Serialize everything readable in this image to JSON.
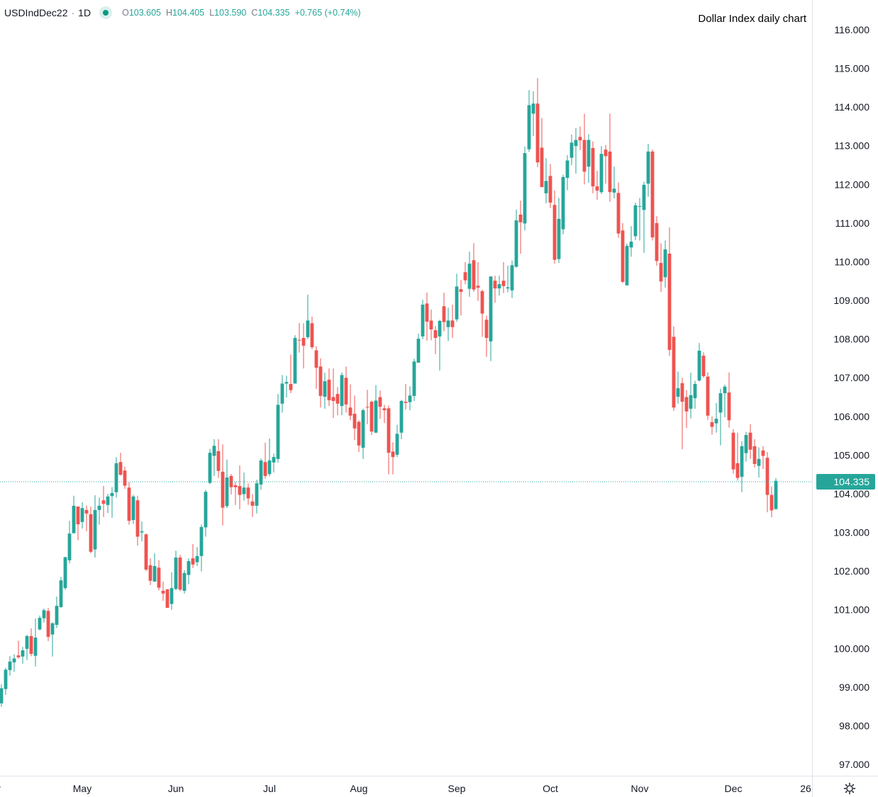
{
  "header": {
    "symbol": "USDIndDec22",
    "separator": "·",
    "interval": "1D",
    "open_label": "O",
    "open": "103.605",
    "high_label": "H",
    "high": "104.405",
    "low_label": "L",
    "low": "103.590",
    "close_label": "C",
    "close": "104.335",
    "change": "+0.765 (+0.74%)",
    "status_icon": "market-open-dot-icon"
  },
  "title": "Dollar Index daily chart",
  "settings_icon": "gear-icon",
  "colors": {
    "up": "#26a69a",
    "down": "#ef5350",
    "last_price": "#26a69a",
    "grid_border": "#e0e3eb"
  },
  "chart_data": {
    "type": "candlestick",
    "title": "Dollar Index daily chart",
    "grid": false,
    "ylim": [
      96.6,
      116.7
    ],
    "y_ticks": [
      "97.000",
      "98.000",
      "99.000",
      "100.000",
      "101.000",
      "102.000",
      "103.000",
      "104.000",
      "105.000",
      "106.000",
      "107.000",
      "108.000",
      "109.000",
      "110.000",
      "111.000",
      "112.000",
      "113.000",
      "114.000",
      "115.000",
      "116.000"
    ],
    "x_ticks": [
      {
        "date": "04-01",
        "label": "Apr"
      },
      {
        "date": "05-02",
        "label": "May"
      },
      {
        "date": "06-01",
        "label": "Jun"
      },
      {
        "date": "07-01",
        "label": "Jul"
      },
      {
        "date": "08-01",
        "label": "Aug"
      },
      {
        "date": "09-01",
        "label": "Sep"
      },
      {
        "date": "10-03",
        "label": "Oct"
      },
      {
        "date": "11-01",
        "label": "Nov"
      },
      {
        "date": "12-01",
        "label": "Dec"
      },
      {
        "date": "12-26",
        "label": "26"
      }
    ],
    "last_price": "104.335",
    "columns": [
      "date",
      "open",
      "high",
      "low",
      "close"
    ],
    "rows": [
      [
        "04-05",
        98.58,
        99.07,
        98.49,
        98.97
      ],
      [
        "04-06",
        98.95,
        99.5,
        98.8,
        99.45
      ],
      [
        "04-07",
        99.44,
        99.8,
        99.3,
        99.66
      ],
      [
        "04-08",
        99.64,
        99.85,
        99.4,
        99.74
      ],
      [
        "04-11",
        99.82,
        100.2,
        99.73,
        99.77
      ],
      [
        "04-12",
        99.79,
        100.04,
        99.6,
        99.95
      ],
      [
        "04-13",
        99.99,
        100.35,
        99.7,
        100.32
      ],
      [
        "04-14",
        100.32,
        100.52,
        99.8,
        99.86
      ],
      [
        "04-15",
        99.81,
        100.77,
        99.53,
        100.28
      ],
      [
        "04-18",
        100.49,
        100.85,
        100.47,
        100.79
      ],
      [
        "04-19",
        100.78,
        101.03,
        100.67,
        100.99
      ],
      [
        "04-20",
        100.97,
        101.05,
        100.19,
        100.3
      ],
      [
        "04-21",
        100.36,
        100.68,
        99.79,
        100.65
      ],
      [
        "04-22",
        100.61,
        101.34,
        100.53,
        101.1
      ],
      [
        "04-25",
        101.07,
        101.85,
        101.05,
        101.76
      ],
      [
        "04-26",
        101.56,
        102.37,
        101.52,
        102.36
      ],
      [
        "04-27",
        102.28,
        103.3,
        102.2,
        102.97
      ],
      [
        "04-28",
        102.98,
        103.95,
        102.98,
        103.69
      ],
      [
        "04-29",
        103.67,
        103.67,
        102.8,
        103.21
      ],
      [
        "05-02",
        103.27,
        103.78,
        103.1,
        103.63
      ],
      [
        "05-03",
        103.58,
        103.7,
        103.03,
        103.49
      ],
      [
        "05-04",
        103.47,
        103.67,
        102.46,
        102.5
      ],
      [
        "05-05",
        102.56,
        103.96,
        102.35,
        103.58
      ],
      [
        "05-06",
        103.58,
        103.9,
        103.2,
        103.69
      ],
      [
        "05-09",
        103.83,
        104.2,
        103.4,
        103.74
      ],
      [
        "05-10",
        103.71,
        104.0,
        103.5,
        103.93
      ],
      [
        "05-11",
        103.94,
        104.17,
        103.38,
        104.02
      ],
      [
        "05-12",
        104.04,
        104.95,
        103.9,
        104.79
      ],
      [
        "05-13",
        104.82,
        105.06,
        104.47,
        104.49
      ],
      [
        "05-16",
        104.6,
        104.7,
        104.13,
        104.21
      ],
      [
        "05-17",
        104.16,
        104.3,
        103.2,
        103.3
      ],
      [
        "05-18",
        103.32,
        103.97,
        103.22,
        103.93
      ],
      [
        "05-19",
        103.83,
        103.95,
        102.66,
        102.89
      ],
      [
        "05-20",
        103.0,
        103.28,
        102.77,
        103.03
      ],
      [
        "05-23",
        102.95,
        102.97,
        102.0,
        102.04
      ],
      [
        "05-24",
        102.15,
        102.33,
        101.64,
        101.75
      ],
      [
        "05-25",
        101.73,
        102.46,
        101.72,
        102.13
      ],
      [
        "05-26",
        102.09,
        102.28,
        101.5,
        101.57
      ],
      [
        "05-27",
        101.49,
        101.73,
        101.23,
        101.42
      ],
      [
        "05-30",
        101.53,
        101.53,
        101.05,
        101.05
      ],
      [
        "05-31",
        101.15,
        101.97,
        101.0,
        101.56
      ],
      [
        "06-01",
        101.54,
        102.53,
        101.5,
        102.35
      ],
      [
        "06-02",
        102.35,
        102.42,
        101.48,
        101.52
      ],
      [
        "06-03",
        101.49,
        102.02,
        101.42,
        101.95
      ],
      [
        "06-06",
        101.9,
        102.33,
        101.66,
        102.26
      ],
      [
        "06-07",
        102.33,
        102.7,
        102.08,
        102.17
      ],
      [
        "06-08",
        102.23,
        102.62,
        102.13,
        102.39
      ],
      [
        "06-09",
        102.39,
        103.2,
        101.99,
        103.14
      ],
      [
        "06-10",
        103.13,
        104.1,
        102.89,
        104.05
      ],
      [
        "06-13",
        104.28,
        105.16,
        104.25,
        105.06
      ],
      [
        "06-14",
        104.98,
        105.41,
        104.46,
        105.24
      ],
      [
        "06-15",
        105.1,
        105.41,
        104.41,
        104.59
      ],
      [
        "06-16",
        104.57,
        105.28,
        103.18,
        103.64
      ],
      [
        "06-17",
        103.68,
        104.88,
        103.63,
        104.42
      ],
      [
        "06-20",
        104.46,
        104.51,
        103.98,
        104.17
      ],
      [
        "06-21",
        104.22,
        104.31,
        103.71,
        104.17
      ],
      [
        "06-22",
        104.2,
        104.73,
        103.6,
        103.97
      ],
      [
        "06-23",
        103.99,
        104.55,
        103.82,
        104.16
      ],
      [
        "06-24",
        104.16,
        104.27,
        103.71,
        103.88
      ],
      [
        "06-27",
        103.8,
        103.99,
        103.4,
        103.69
      ],
      [
        "06-28",
        103.69,
        104.36,
        103.49,
        104.27
      ],
      [
        "06-29",
        104.24,
        104.91,
        104.11,
        104.86
      ],
      [
        "06-30",
        104.82,
        105.32,
        104.39,
        104.46
      ],
      [
        "07-01",
        104.51,
        105.43,
        104.45,
        104.86
      ],
      [
        "07-04",
        104.81,
        105.04,
        104.55,
        104.95
      ],
      [
        "07-05",
        104.9,
        106.58,
        104.8,
        106.3
      ],
      [
        "07-06",
        106.33,
        107.07,
        106.1,
        106.85
      ],
      [
        "07-07",
        106.85,
        107.05,
        106.49,
        106.89
      ],
      [
        "07-08",
        106.84,
        107.6,
        106.6,
        106.68
      ],
      [
        "07-11",
        106.85,
        108.1,
        106.85,
        108.03
      ],
      [
        "07-12",
        107.98,
        108.42,
        107.65,
        107.97
      ],
      [
        "07-13",
        108.03,
        108.41,
        107.24,
        107.83
      ],
      [
        "07-14",
        108.05,
        109.15,
        108.0,
        108.48
      ],
      [
        "07-15",
        108.41,
        108.58,
        107.74,
        107.79
      ],
      [
        "07-18",
        107.71,
        107.82,
        106.71,
        107.26
      ],
      [
        "07-19",
        107.29,
        107.5,
        106.23,
        106.53
      ],
      [
        "07-20",
        106.51,
        107.13,
        106.2,
        106.91
      ],
      [
        "07-21",
        106.95,
        107.24,
        106.27,
        106.42
      ],
      [
        "07-22",
        106.5,
        107.24,
        105.96,
        106.4
      ],
      [
        "07-25",
        106.58,
        106.76,
        106.03,
        106.33
      ],
      [
        "07-26",
        106.27,
        107.14,
        106.03,
        107.07
      ],
      [
        "07-27",
        107.0,
        107.29,
        106.1,
        106.31
      ],
      [
        "07-28",
        106.23,
        106.83,
        105.9,
        106.02
      ],
      [
        "07-29",
        106.07,
        106.54,
        105.39,
        105.69
      ],
      [
        "08-01",
        105.86,
        105.9,
        105.08,
        105.25
      ],
      [
        "08-02",
        105.19,
        106.2,
        104.9,
        106.16
      ],
      [
        "08-03",
        106.25,
        106.69,
        105.8,
        106.24
      ],
      [
        "08-04",
        106.38,
        106.41,
        105.52,
        105.61
      ],
      [
        "08-05",
        105.58,
        106.81,
        105.57,
        106.41
      ],
      [
        "08-08",
        106.5,
        106.67,
        105.94,
        106.25
      ],
      [
        "08-09",
        106.21,
        106.3,
        105.83,
        106.16
      ],
      [
        "08-10",
        106.21,
        106.28,
        104.5,
        105.06
      ],
      [
        "08-11",
        105.09,
        105.33,
        104.5,
        104.95
      ],
      [
        "08-12",
        105.01,
        105.78,
        104.95,
        105.55
      ],
      [
        "08-15",
        105.58,
        106.43,
        105.41,
        106.4
      ],
      [
        "08-16",
        106.38,
        106.84,
        106.18,
        106.35
      ],
      [
        "08-17",
        106.37,
        106.78,
        106.16,
        106.54
      ],
      [
        "08-18",
        106.53,
        107.49,
        106.4,
        107.42
      ],
      [
        "08-19",
        107.39,
        108.14,
        107.39,
        108.01
      ],
      [
        "08-22",
        108.07,
        109.02,
        108.0,
        108.89
      ],
      [
        "08-23",
        108.92,
        109.2,
        107.96,
        108.45
      ],
      [
        "08-24",
        108.48,
        108.76,
        107.97,
        108.25
      ],
      [
        "08-25",
        108.23,
        108.34,
        107.61,
        108.03
      ],
      [
        "08-26",
        108.07,
        108.5,
        107.19,
        108.47
      ],
      [
        "08-29",
        108.85,
        109.2,
        108.2,
        108.44
      ],
      [
        "08-30",
        108.31,
        108.81,
        107.95,
        108.48
      ],
      [
        "08-31",
        108.48,
        108.89,
        108.03,
        108.31
      ],
      [
        "09-01",
        108.51,
        109.69,
        108.45,
        109.36
      ],
      [
        "09-02",
        109.29,
        109.53,
        108.61,
        109.22
      ],
      [
        "09-05",
        109.73,
        109.99,
        109.42,
        109.52
      ],
      [
        "09-06",
        109.3,
        110.26,
        109.09,
        109.95
      ],
      [
        "09-07",
        110.04,
        110.48,
        109.22,
        109.28
      ],
      [
        "09-08",
        109.38,
        109.99,
        108.99,
        109.33
      ],
      [
        "09-09",
        109.24,
        109.28,
        108.06,
        108.66
      ],
      [
        "09-12",
        108.5,
        108.61,
        107.54,
        108.03
      ],
      [
        "09-13",
        107.94,
        109.62,
        107.43,
        109.62
      ],
      [
        "09-14",
        109.51,
        109.64,
        108.94,
        109.31
      ],
      [
        "09-15",
        109.31,
        109.64,
        109.13,
        109.42
      ],
      [
        "09-16",
        109.51,
        109.99,
        109.19,
        109.37
      ],
      [
        "09-19",
        109.31,
        109.9,
        109.21,
        109.34
      ],
      [
        "09-20",
        109.26,
        110.03,
        109.06,
        109.91
      ],
      [
        "09-21",
        109.87,
        111.35,
        109.85,
        111.07
      ],
      [
        "09-22",
        111.22,
        111.58,
        110.21,
        111.02
      ],
      [
        "09-23",
        110.99,
        112.98,
        110.81,
        112.81
      ],
      [
        "09-26",
        112.91,
        114.44,
        112.84,
        114.05
      ],
      [
        "09-27",
        113.83,
        114.41,
        113.25,
        114.09
      ],
      [
        "09-28",
        114.09,
        114.75,
        112.45,
        112.57
      ],
      [
        "09-29",
        112.95,
        113.72,
        111.93,
        111.93
      ],
      [
        "09-30",
        111.77,
        112.68,
        111.51,
        112.09
      ],
      [
        "10-03",
        112.22,
        112.53,
        111.39,
        111.53
      ],
      [
        "10-04",
        111.47,
        111.84,
        109.95,
        110.05
      ],
      [
        "10-05",
        110.07,
        111.65,
        109.97,
        111.11
      ],
      [
        "10-06",
        110.84,
        112.25,
        110.71,
        112.19
      ],
      [
        "10-07",
        112.17,
        112.76,
        111.85,
        112.62
      ],
      [
        "10-10",
        112.69,
        113.29,
        112.5,
        113.08
      ],
      [
        "10-11",
        112.99,
        113.46,
        112.28,
        113.15
      ],
      [
        "10-12",
        113.23,
        113.5,
        112.89,
        113.14
      ],
      [
        "10-13",
        113.15,
        113.83,
        112.0,
        112.33
      ],
      [
        "10-14",
        112.46,
        113.3,
        112.04,
        113.15
      ],
      [
        "10-17",
        112.94,
        113.11,
        111.77,
        111.95
      ],
      [
        "10-18",
        111.95,
        112.35,
        111.6,
        111.84
      ],
      [
        "10-19",
        111.8,
        112.99,
        111.75,
        112.79
      ],
      [
        "10-20",
        112.9,
        113.02,
        112.02,
        112.73
      ],
      [
        "10-21",
        112.85,
        113.83,
        111.55,
        111.8
      ],
      [
        "10-24",
        111.79,
        112.46,
        111.64,
        111.89
      ],
      [
        "10-25",
        111.78,
        112.05,
        110.62,
        110.73
      ],
      [
        "10-26",
        110.81,
        111.0,
        109.45,
        109.48
      ],
      [
        "10-27",
        109.39,
        110.47,
        109.39,
        110.41
      ],
      [
        "10-28",
        110.37,
        110.92,
        110.13,
        110.52
      ],
      [
        "10-31",
        110.66,
        111.53,
        110.56,
        111.46
      ],
      [
        "11-01",
        111.43,
        111.65,
        110.55,
        111.44
      ],
      [
        "11-02",
        111.34,
        112.07,
        110.23,
        111.99
      ],
      [
        "11-03",
        112.02,
        113.05,
        111.68,
        112.85
      ],
      [
        "11-04",
        112.85,
        112.9,
        110.55,
        110.63
      ],
      [
        "11-07",
        111.0,
        111.18,
        109.9,
        110.02
      ],
      [
        "11-08",
        109.97,
        110.48,
        109.22,
        109.49
      ],
      [
        "11-09",
        109.6,
        110.55,
        109.33,
        110.32
      ],
      [
        "11-10",
        110.21,
        110.89,
        107.57,
        107.72
      ],
      [
        "11-11",
        108.06,
        108.33,
        106.14,
        106.23
      ],
      [
        "11-14",
        106.51,
        107.16,
        106.33,
        106.73
      ],
      [
        "11-15",
        106.86,
        107.0,
        105.15,
        106.38
      ],
      [
        "11-16",
        106.5,
        106.68,
        105.7,
        106.13
      ],
      [
        "11-17",
        106.2,
        107.13,
        105.95,
        106.55
      ],
      [
        "11-18",
        106.47,
        106.92,
        106.2,
        106.84
      ],
      [
        "11-21",
        106.93,
        107.9,
        106.9,
        107.7
      ],
      [
        "11-22",
        107.57,
        107.66,
        107.0,
        107.04
      ],
      [
        "11-23",
        107.03,
        107.14,
        105.91,
        106.02
      ],
      [
        "11-24",
        105.85,
        106.0,
        105.53,
        105.73
      ],
      [
        "11-25",
        105.82,
        106.35,
        105.58,
        105.94
      ],
      [
        "11-28",
        106.1,
        106.72,
        105.25,
        106.6
      ],
      [
        "11-29",
        106.6,
        106.82,
        105.98,
        106.77
      ],
      [
        "11-30",
        106.62,
        107.14,
        105.71,
        105.9
      ],
      [
        "12-01",
        105.58,
        105.67,
        104.52,
        104.63
      ],
      [
        "12-02",
        104.79,
        105.58,
        104.34,
        104.41
      ],
      [
        "12-05",
        104.44,
        105.36,
        104.04,
        105.23
      ],
      [
        "12-06",
        105.05,
        105.6,
        104.83,
        105.52
      ],
      [
        "12-07",
        105.58,
        105.8,
        104.9,
        105.14
      ],
      [
        "12-08",
        105.23,
        105.41,
        104.68,
        104.77
      ],
      [
        "12-09",
        104.72,
        105.2,
        104.42,
        104.9
      ],
      [
        "12-12",
        105.12,
        105.23,
        104.64,
        104.98
      ],
      [
        "12-13",
        104.93,
        105.08,
        103.52,
        103.97
      ],
      [
        "12-14",
        103.97,
        104.19,
        103.39,
        103.57
      ],
      [
        "12-15",
        103.605,
        104.405,
        103.59,
        104.335
      ]
    ]
  }
}
